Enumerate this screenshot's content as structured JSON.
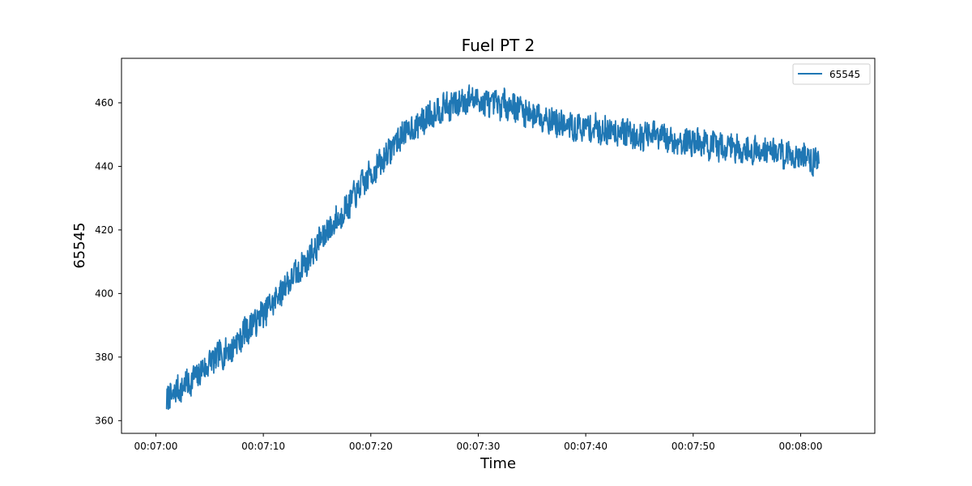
{
  "chart_data": {
    "type": "line",
    "title": "Fuel PT 2",
    "xlabel": "Time",
    "ylabel": "65545",
    "x_ticks": [
      "00:07:00",
      "00:07:10",
      "00:07:20",
      "00:07:30",
      "00:07:40",
      "00:07:50",
      "00:08:00"
    ],
    "y_ticks": [
      "360",
      "380",
      "400",
      "420",
      "440",
      "460"
    ],
    "xlim": [
      "00:06:56.8",
      "00:08:06.9"
    ],
    "ylim": [
      356,
      474
    ],
    "grid": false,
    "legend_position": "top-right",
    "series": [
      {
        "name": "65545",
        "color": "#1f77b4",
        "x": [
          "00:07:01",
          "00:07:03",
          "00:07:05",
          "00:07:07",
          "00:07:09",
          "00:07:11",
          "00:07:13",
          "00:07:15",
          "00:07:17",
          "00:07:19",
          "00:07:21",
          "00:07:23",
          "00:07:25",
          "00:07:27",
          "00:07:29",
          "00:07:31",
          "00:07:33",
          "00:07:35",
          "00:07:37",
          "00:07:39",
          "00:07:41",
          "00:07:43",
          "00:07:45",
          "00:07:47",
          "00:07:49",
          "00:07:51",
          "00:07:53",
          "00:07:55",
          "00:07:57",
          "00:07:59",
          "00:08:01",
          "00:08:01.7"
        ],
        "values": [
          366,
          372,
          378,
          383,
          390,
          398,
          406,
          415,
          424,
          433,
          442,
          450,
          455,
          459,
          461,
          460,
          459,
          457,
          454,
          452,
          452,
          451,
          450,
          449,
          448,
          447,
          446,
          445,
          445,
          444,
          442,
          441
        ],
        "noise": 5
      }
    ]
  }
}
